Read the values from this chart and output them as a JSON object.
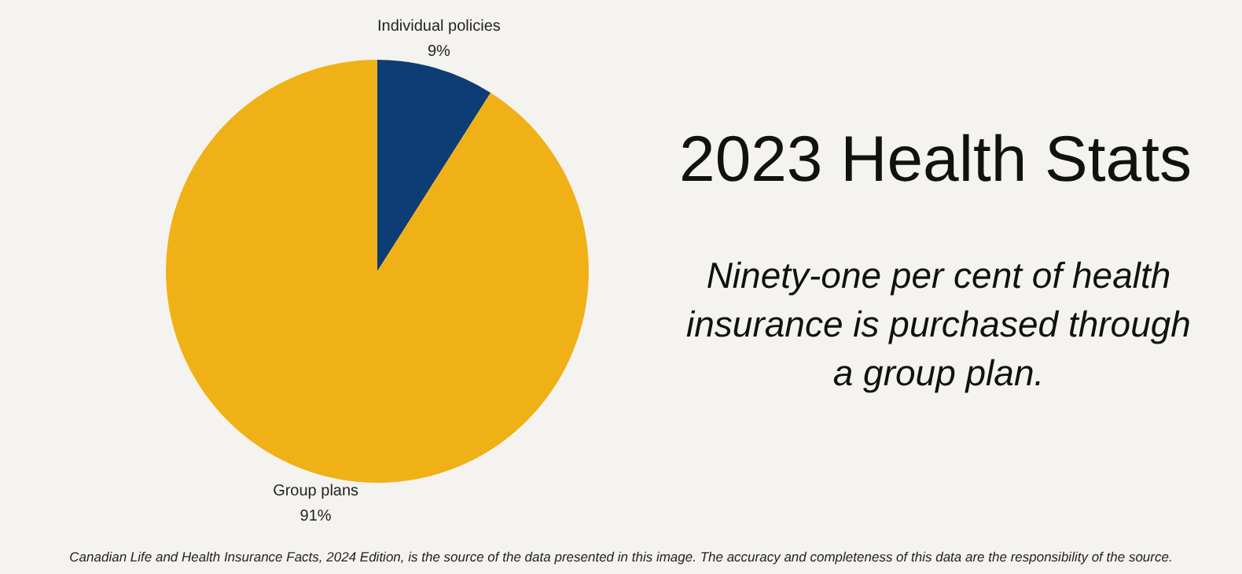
{
  "chart_data": {
    "type": "pie",
    "title": "2023 Health Stats",
    "subtitle": "Ninety-one per cent of health insurance is purchased through a group plan.",
    "categories": [
      "Individual policies",
      "Group plans"
    ],
    "values": [
      9,
      91
    ],
    "colors": [
      "#0e3d75",
      "#f0b116"
    ],
    "value_labels": [
      "9%",
      "91%"
    ],
    "legend": false,
    "annotations": [
      "Canadian Life and Health Insurance Facts, 2024 Edition, is the source of the data presented in this image. The accuracy and completeness of this data are the responsibility of the source."
    ]
  }
}
